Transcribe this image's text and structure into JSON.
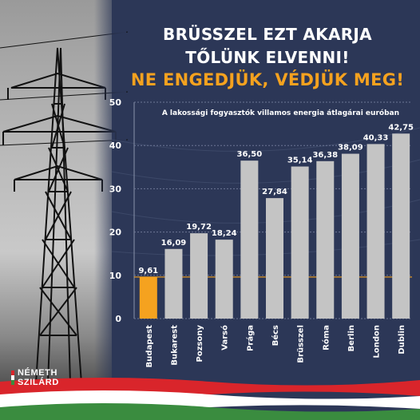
{
  "headline": {
    "line1": "BRÜSSZEL EZT AKARJA",
    "line2": "TŐLÜNK ELVENNI!",
    "line3": "NE ENGEDJÜK, VÉDJÜK MEG!"
  },
  "logo": {
    "line1": "NÉMETH",
    "line2": "SZILÁRD"
  },
  "colors": {
    "background": "#2c3757",
    "highlight_bar": "#f5a21f",
    "bar": "#c4c4c4",
    "reference_line": "#f5a21f",
    "flag_red": "#d9252b",
    "flag_white": "#ffffff",
    "flag_green": "#3a8c3f"
  },
  "chart_data": {
    "type": "bar",
    "title": "A lakossági fogyasztók villamos energia átlagárai euróban",
    "categories": [
      "Budapest",
      "Bukarest",
      "Pozsony",
      "Varsó",
      "Prága",
      "Bécs",
      "Brüsszel",
      "Róma",
      "Berlin",
      "London",
      "Dublin"
    ],
    "values": [
      9.61,
      16.09,
      19.72,
      18.24,
      36.5,
      27.84,
      35.14,
      36.38,
      38.09,
      40.33,
      42.75
    ],
    "value_labels": [
      "9,61",
      "16,09",
      "19,72",
      "18,24",
      "36,50",
      "27,84",
      "35,14",
      "36,38",
      "38,09",
      "40,33",
      "42,75"
    ],
    "highlight_category": "Budapest",
    "reference_line_value": 9.61,
    "ylim": [
      0,
      50
    ],
    "yticks": [
      "0",
      "10",
      "20",
      "30",
      "40",
      "50"
    ],
    "ytick_values": [
      0,
      10,
      20,
      30,
      40,
      50
    ],
    "grid": true,
    "xlabel": "",
    "ylabel": ""
  }
}
